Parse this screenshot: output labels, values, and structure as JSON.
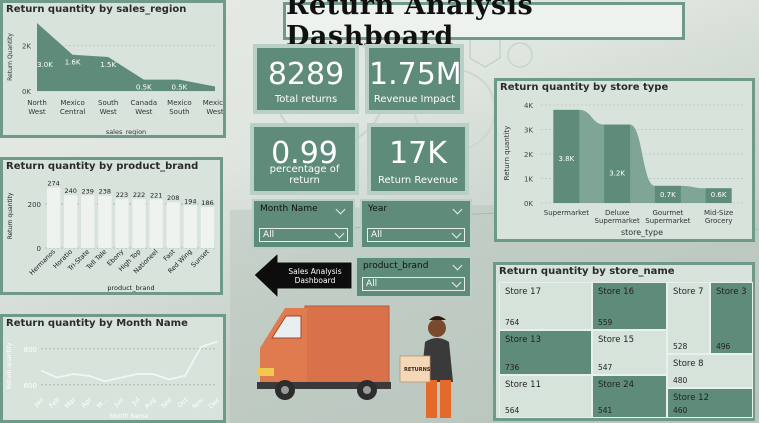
{
  "dashboard": {
    "title": "Return Analysis Dashboard"
  },
  "kpis": [
    {
      "value": "8289",
      "label": "Total returns"
    },
    {
      "value": "1.75M",
      "label": "Revenue Impact"
    },
    {
      "value": "0.99",
      "label": "percentage of return"
    },
    {
      "value": "17K",
      "label": "Return Revenue"
    }
  ],
  "slicers": {
    "month": {
      "label": "Month Name",
      "value": "All"
    },
    "year": {
      "label": "Year",
      "value": "All"
    },
    "product_brand": {
      "label": "product_brand",
      "value": "All"
    }
  },
  "nav_button": {
    "line1": "Sales Analysis",
    "line2": "Dashboard"
  },
  "illustration": {
    "box_label": "RETURNS"
  },
  "colors": {
    "bar": "#5f8b7a",
    "panel_border": "#6f9a8a",
    "panel_bg": "#d8e3dc",
    "area": "#5f8b7a"
  },
  "chart_data": [
    {
      "type": "area",
      "title": "Return quantity by sales_region",
      "xlabel": "sales_region",
      "ylabel": "Return Quantity",
      "y_ticks": [
        "0K",
        "2K"
      ],
      "ylim": [
        0,
        3000
      ],
      "categories": [
        "North West",
        "Mexico Central",
        "South West",
        "Canada West",
        "Mexico South",
        "Mexico West"
      ],
      "values": [
        3000,
        1600,
        1500,
        500,
        500,
        200
      ],
      "data_labels": [
        "3.0K",
        "1.6K",
        "1.5K",
        "0.5K",
        "0.5K",
        ""
      ]
    },
    {
      "type": "bar",
      "title": "Return quantity by product_brand",
      "xlabel": "product_brand",
      "ylabel": "Return quantity",
      "y_ticks": [
        "0",
        "200"
      ],
      "ylim": [
        0,
        300
      ],
      "categories": [
        "Hermanos",
        "Horatio",
        "Tri-State",
        "Tell Tale",
        "Ebony",
        "High Top",
        "Nationeel",
        "Fast",
        "Red Wing",
        "Sunset"
      ],
      "values": [
        274,
        240,
        239,
        238,
        223,
        222,
        221,
        208,
        194,
        186
      ]
    },
    {
      "type": "line",
      "title": "Return quantity by Month Name",
      "xlabel": "Month Name",
      "ylabel": "Return quantity",
      "y_ticks": [
        "600",
        "800"
      ],
      "ylim": [
        560,
        860
      ],
      "categories": [
        "Jan",
        "Feb",
        "Mar",
        "Apr",
        "M...",
        "Jun",
        "Jul",
        "Aug",
        "Sep",
        "Oct",
        "Nov",
        "Dec"
      ],
      "values": [
        680,
        640,
        660,
        650,
        620,
        640,
        660,
        660,
        630,
        650,
        810,
        840
      ]
    },
    {
      "type": "area",
      "title": "Return quantity by store type",
      "xlabel": "store_type",
      "ylabel": "Return quantity",
      "y_ticks": [
        "0K",
        "1K",
        "2K",
        "3K",
        "4K"
      ],
      "ylim": [
        0,
        4000
      ],
      "categories": [
        "Supermarket",
        "Deluxe Supermarket",
        "Gourmet Supermarket",
        "Mid-Size Grocery"
      ],
      "values": [
        3800,
        3200,
        700,
        600
      ],
      "data_labels": [
        "3.8K",
        "3.2K",
        "0.7K",
        "0.6K"
      ]
    },
    {
      "type": "treemap",
      "title": "Return quantity by store_name",
      "items": [
        {
          "name": "Store 17",
          "value": "764"
        },
        {
          "name": "Store 16",
          "value": "559"
        },
        {
          "name": "Store 7",
          "value": "528"
        },
        {
          "name": "Store 3",
          "value": "496"
        },
        {
          "name": "Store 13",
          "value": "736"
        },
        {
          "name": "Store 15",
          "value": "547"
        },
        {
          "name": "Store 8",
          "value": "480"
        },
        {
          "name": "Store 11",
          "value": "564"
        },
        {
          "name": "Store 24",
          "value": "541"
        },
        {
          "name": "Store 12",
          "value": "460"
        }
      ]
    }
  ]
}
